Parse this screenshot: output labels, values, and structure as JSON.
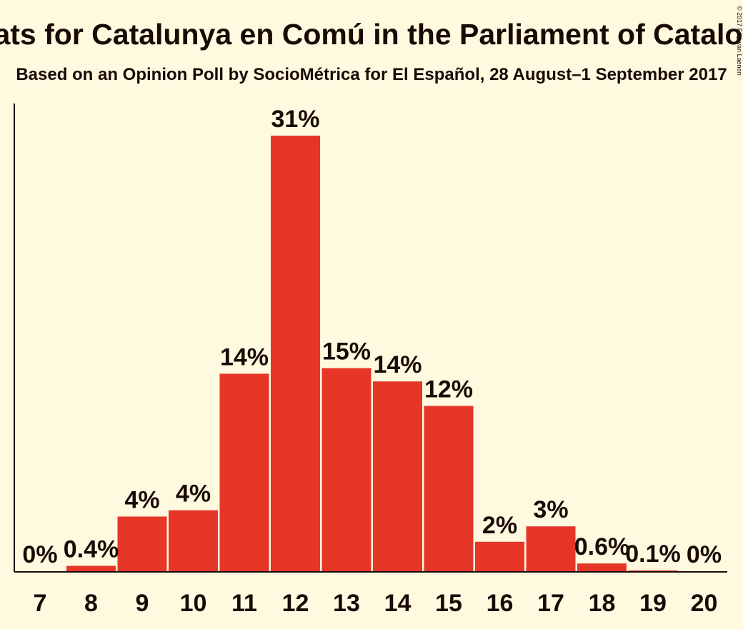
{
  "chart_data": {
    "type": "bar",
    "title": "Seats for Catalunya en Comú in the Parliament of Catalonia",
    "subtitle": "Based on an Opinion Poll by SocioMétrica for El Español, 28 August–1 September 2017",
    "copyright": "© 2017 Filip van Laenen",
    "categories": [
      "7",
      "8",
      "9",
      "10",
      "11",
      "12",
      "13",
      "14",
      "15",
      "16",
      "17",
      "18",
      "19",
      "20"
    ],
    "values": [
      0,
      0.4,
      4,
      4,
      14,
      31,
      15,
      14,
      12,
      2,
      3,
      0.6,
      0.1,
      0
    ],
    "plotted_values": [
      0,
      0.38,
      3.9,
      4.35,
      14.1,
      31.1,
      14.5,
      13.55,
      11.8,
      2.1,
      3.2,
      0.55,
      0.05,
      0
    ],
    "data_labels": [
      "0%",
      "0.4%",
      "4%",
      "4%",
      "14%",
      "31%",
      "15%",
      "14%",
      "12%",
      "2%",
      "3%",
      "0.6%",
      "0.1%",
      "0%"
    ],
    "ylim": [
      0,
      31.1
    ],
    "xlabel": "",
    "ylabel": "",
    "grid": false,
    "legend": "none",
    "colors": {
      "bar": "#E53628",
      "axis": "#1a0a06",
      "background": "#FFF9DF",
      "text": "#1a0a06"
    }
  }
}
